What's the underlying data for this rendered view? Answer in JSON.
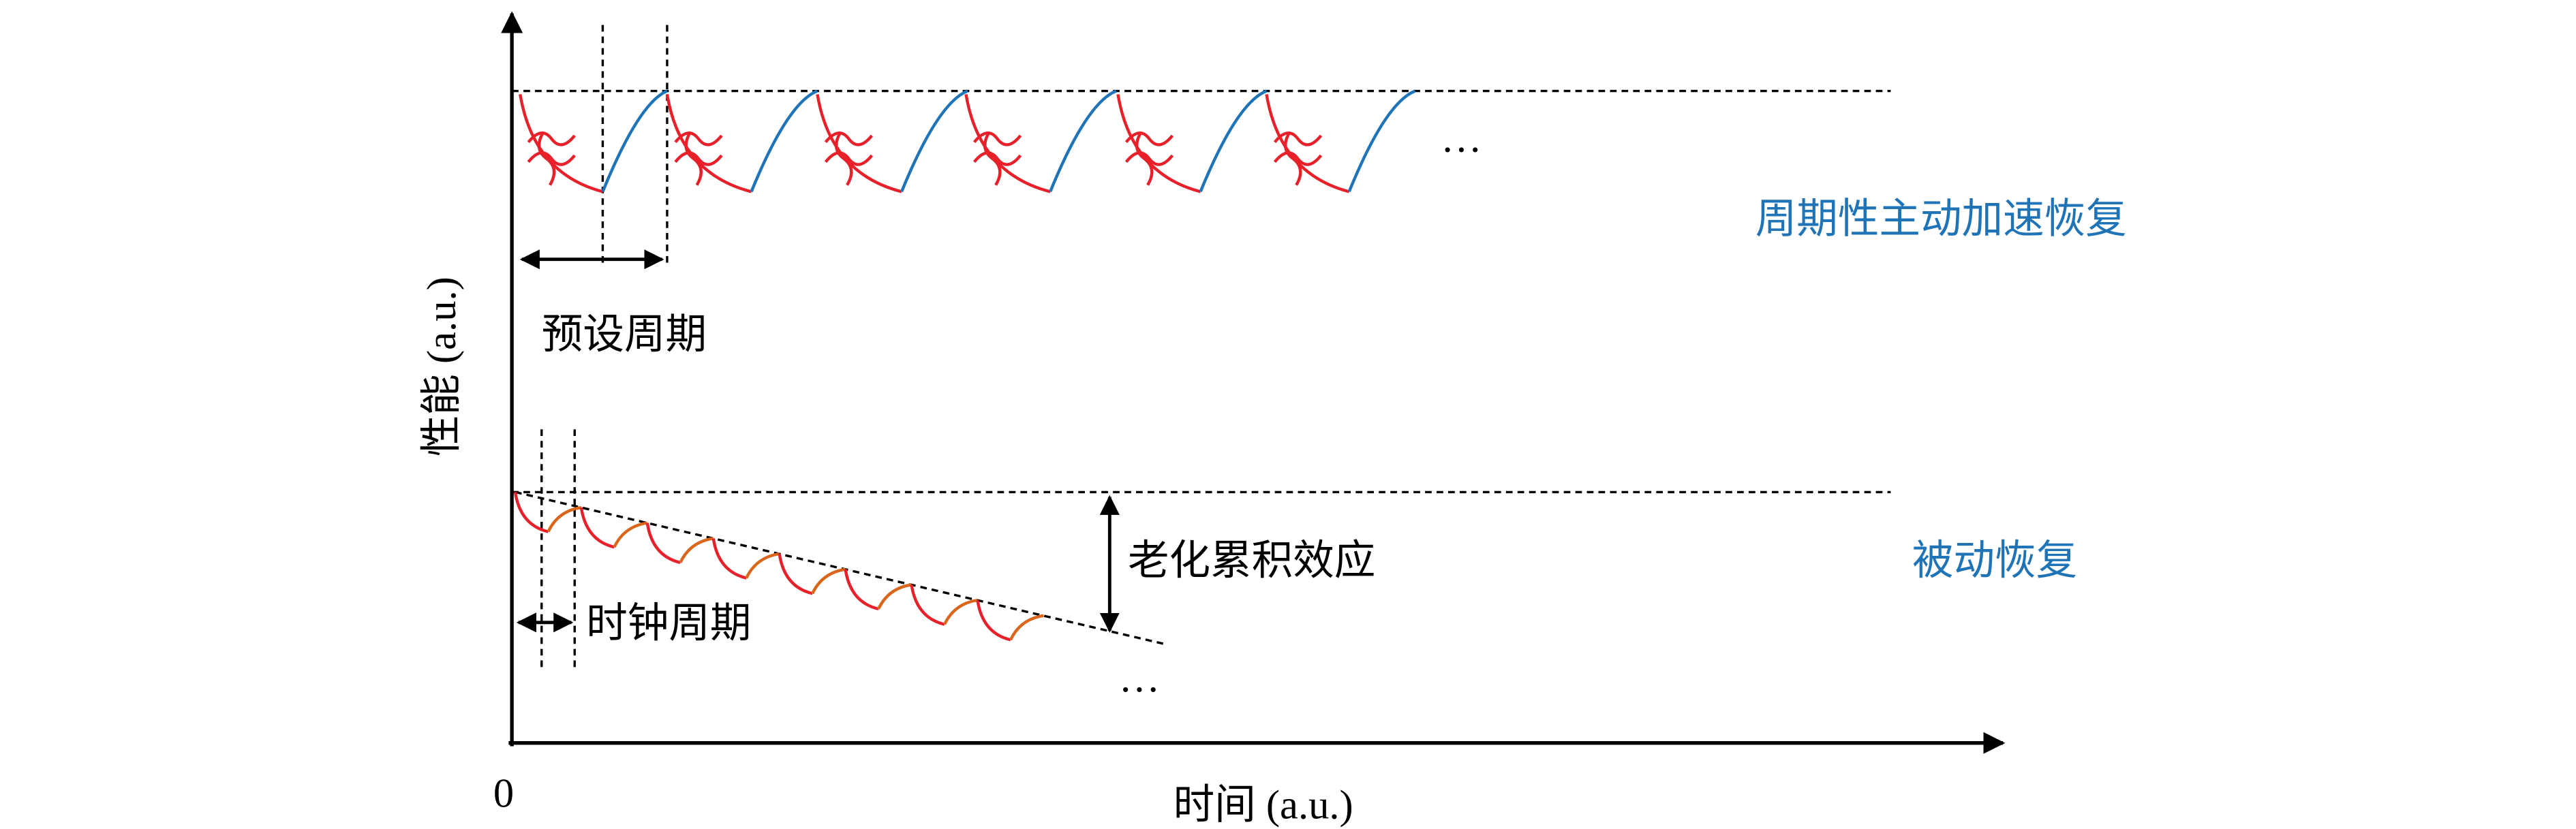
{
  "axes": {
    "y_label": "性能 (a.u.)",
    "x_label": "时间 (a.u.)",
    "origin": "0"
  },
  "top": {
    "period_label": "预设周期",
    "label": "周期性主动加速恢复",
    "ellipsis": "…"
  },
  "bottom": {
    "clock_label": "时钟周期",
    "aging_label": "老化累积效应",
    "label": "被动恢复",
    "ellipsis": "…"
  }
}
